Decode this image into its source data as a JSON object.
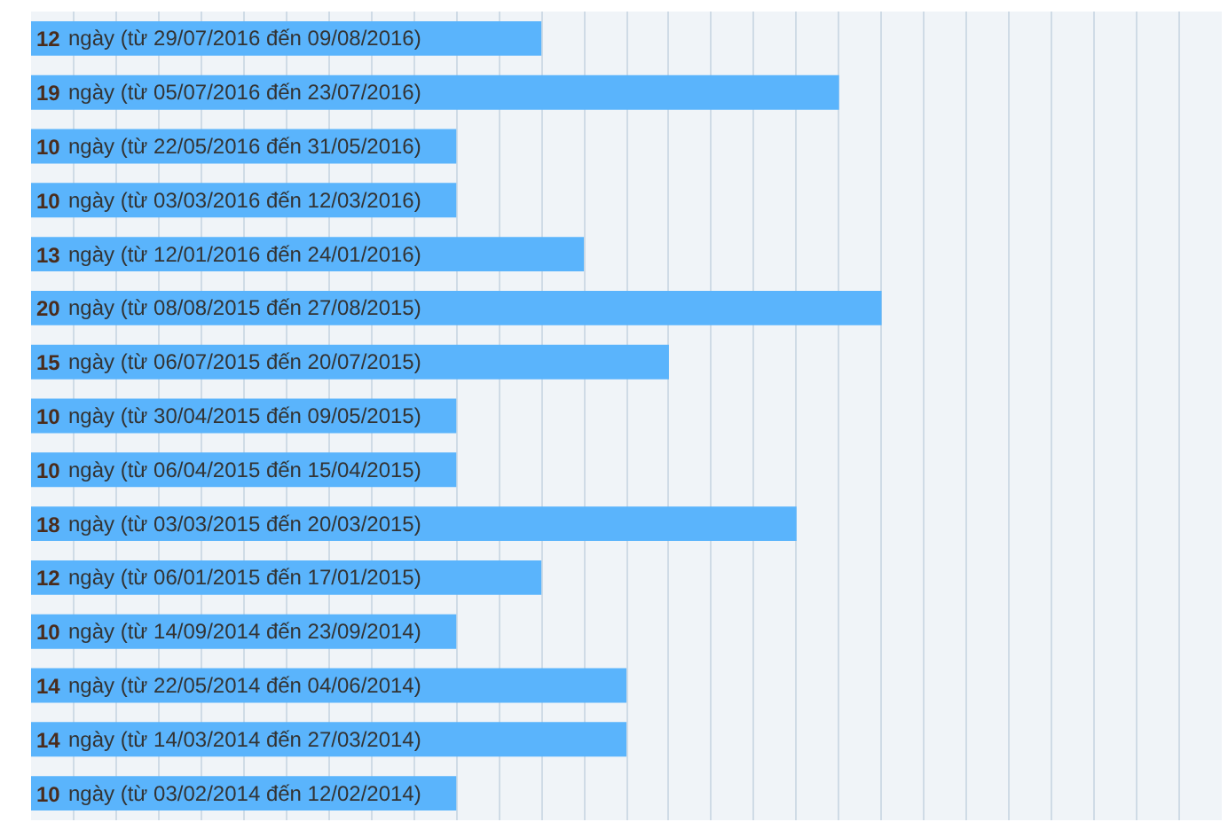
{
  "chart_data": {
    "type": "bar",
    "orientation": "horizontal",
    "color": "#5ab4fc",
    "grid": "x",
    "tick_labels": false,
    "xlim": [
      0,
      28
    ],
    "xticks": [
      {
        "value": 0,
        "label": null
      },
      {
        "value": 1,
        "label": null
      },
      {
        "value": 2,
        "label": null
      },
      {
        "value": 3,
        "label": null
      },
      {
        "value": 4,
        "label": null
      },
      {
        "value": 5,
        "label": null
      },
      {
        "value": 6,
        "label": null
      },
      {
        "value": 7,
        "label": null
      },
      {
        "value": 8,
        "label": null
      },
      {
        "value": 9,
        "label": null
      },
      {
        "value": 10,
        "label": null
      },
      {
        "value": 11,
        "label": null
      },
      {
        "value": 12,
        "label": null
      },
      {
        "value": 13,
        "label": null
      },
      {
        "value": 14,
        "label": null
      },
      {
        "value": 15,
        "label": null
      },
      {
        "value": 16,
        "label": null
      },
      {
        "value": 17,
        "label": null
      },
      {
        "value": 18,
        "label": null
      },
      {
        "value": 19,
        "label": null
      },
      {
        "value": 20,
        "label": null
      },
      {
        "value": 21,
        "label": null
      },
      {
        "value": 22,
        "label": null
      },
      {
        "value": 23,
        "label": null
      },
      {
        "value": 24,
        "label": null
      },
      {
        "value": 25,
        "label": null
      },
      {
        "value": 26,
        "label": null
      },
      {
        "value": 27,
        "label": null
      },
      {
        "value": 28,
        "label": null
      }
    ],
    "categories": [
      null,
      null,
      null,
      null,
      null,
      null,
      null,
      null,
      null,
      null,
      null,
      null,
      null,
      null,
      null
    ],
    "values": [
      12,
      19,
      10,
      10,
      13,
      20,
      15,
      10,
      10,
      18,
      12,
      10,
      14,
      14,
      10
    ],
    "value_labels": [
      "12 ngày (từ 29/07/2016 đến 09/08/2016)",
      "19 ngày (từ 05/07/2016 đến 23/07/2016)",
      "10 ngày (từ 22/05/2016 đến 31/05/2016)",
      "10 ngày (từ 03/03/2016 đến 12/03/2016)",
      "13 ngày (từ 12/01/2016 đến 24/01/2016)",
      "20 ngày (từ 08/08/2015 đến 27/08/2015)",
      "15 ngày (từ 06/07/2015 đến 20/07/2015)",
      "10 ngày (từ 30/04/2015 đến 09/05/2015)",
      "10 ngày (từ 06/04/2015 đến 15/04/2015)",
      "18 ngày (từ 03/03/2015 đến 20/03/2015)",
      "12 ngày (từ 06/01/2015 đến 17/01/2015)",
      "10 ngày (từ 14/09/2014 đến 23/09/2014)",
      "14 ngày (từ 22/05/2014 đến 04/06/2014)",
      "14 ngày (từ 14/03/2014 đến 27/03/2014)",
      "10 ngày (từ 03/02/2014 đến 12/02/2014)"
    ]
  }
}
